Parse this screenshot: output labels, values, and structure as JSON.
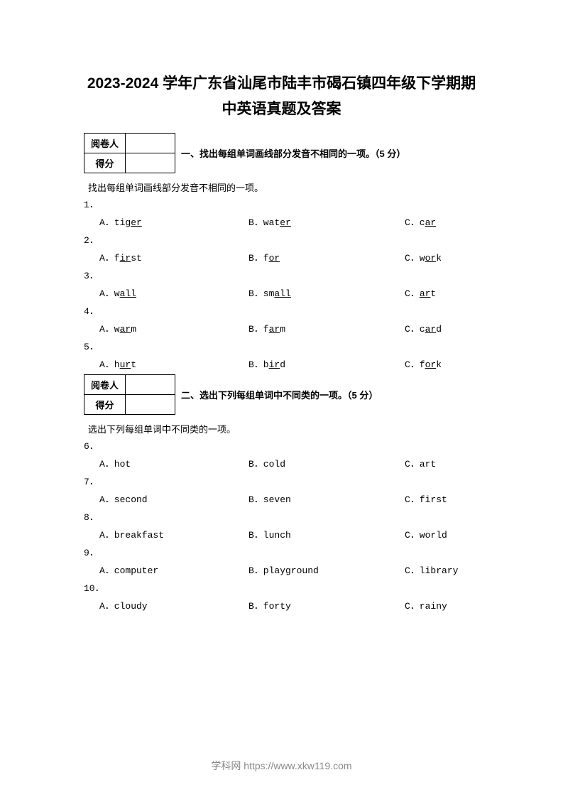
{
  "title_line1": "2023-2024 学年广东省汕尾市陆丰市碣石镇四年级下学期期",
  "title_line2": "中英语真题及答案",
  "grader_labels": {
    "examiner": "阅卷人",
    "score": "得分"
  },
  "section1": {
    "heading": "一、找出每组单词画线部分发音不相同的一项。（5 分）",
    "instruction": "找出每组单词画线部分发音不相同的一项。",
    "questions": [
      {
        "num": "1．",
        "a_pre": "A．tig",
        "a_ul": "er",
        "a_post": "",
        "b_pre": "B．wat",
        "b_ul": "er",
        "b_post": "",
        "c_pre": "C．c",
        "c_ul": "ar",
        "c_post": ""
      },
      {
        "num": "2．",
        "a_pre": "A．f",
        "a_ul": "ir",
        "a_post": "st",
        "b_pre": "B．f",
        "b_ul": "or",
        "b_post": "",
        "c_pre": "C．w",
        "c_ul": "or",
        "c_post": "k"
      },
      {
        "num": "3．",
        "a_pre": "A．w",
        "a_ul": "all",
        "a_post": "",
        "b_pre": "B．sm",
        "b_ul": "all",
        "b_post": "",
        "c_pre": "C．",
        "c_ul": "ar",
        "c_post": "t"
      },
      {
        "num": "4．",
        "a_pre": "A．w",
        "a_ul": "ar",
        "a_post": "m",
        "b_pre": "B．f",
        "b_ul": "ar",
        "b_post": "m",
        "c_pre": "C．c",
        "c_ul": "ar",
        "c_post": "d"
      },
      {
        "num": "5．",
        "a_pre": "A．h",
        "a_ul": "ur",
        "a_post": "t",
        "b_pre": "B．b",
        "b_ul": "ir",
        "b_post": "d",
        "c_pre": "C．f",
        "c_ul": "or",
        "c_post": "k"
      }
    ]
  },
  "section2": {
    "heading": "二、选出下列每组单词中不同类的一项。（5 分）",
    "instruction": "选出下列每组单词中不同类的一项。",
    "questions": [
      {
        "num": "6．",
        "a": "A．hot",
        "b": "B．cold",
        "c": "C．art"
      },
      {
        "num": "7．",
        "a": "A．second",
        "b": "B．seven",
        "c": "C．first"
      },
      {
        "num": "8．",
        "a": "A．breakfast",
        "b": "B．lunch",
        "c": "C．world"
      },
      {
        "num": "9．",
        "a": "A．computer",
        "b": "B．playground",
        "c": "C．library"
      },
      {
        "num": "10．",
        "a": "A．cloudy",
        "b": "B．forty",
        "c": "C．rainy"
      }
    ]
  },
  "footer": "学科网 https://www.xkw119.com"
}
